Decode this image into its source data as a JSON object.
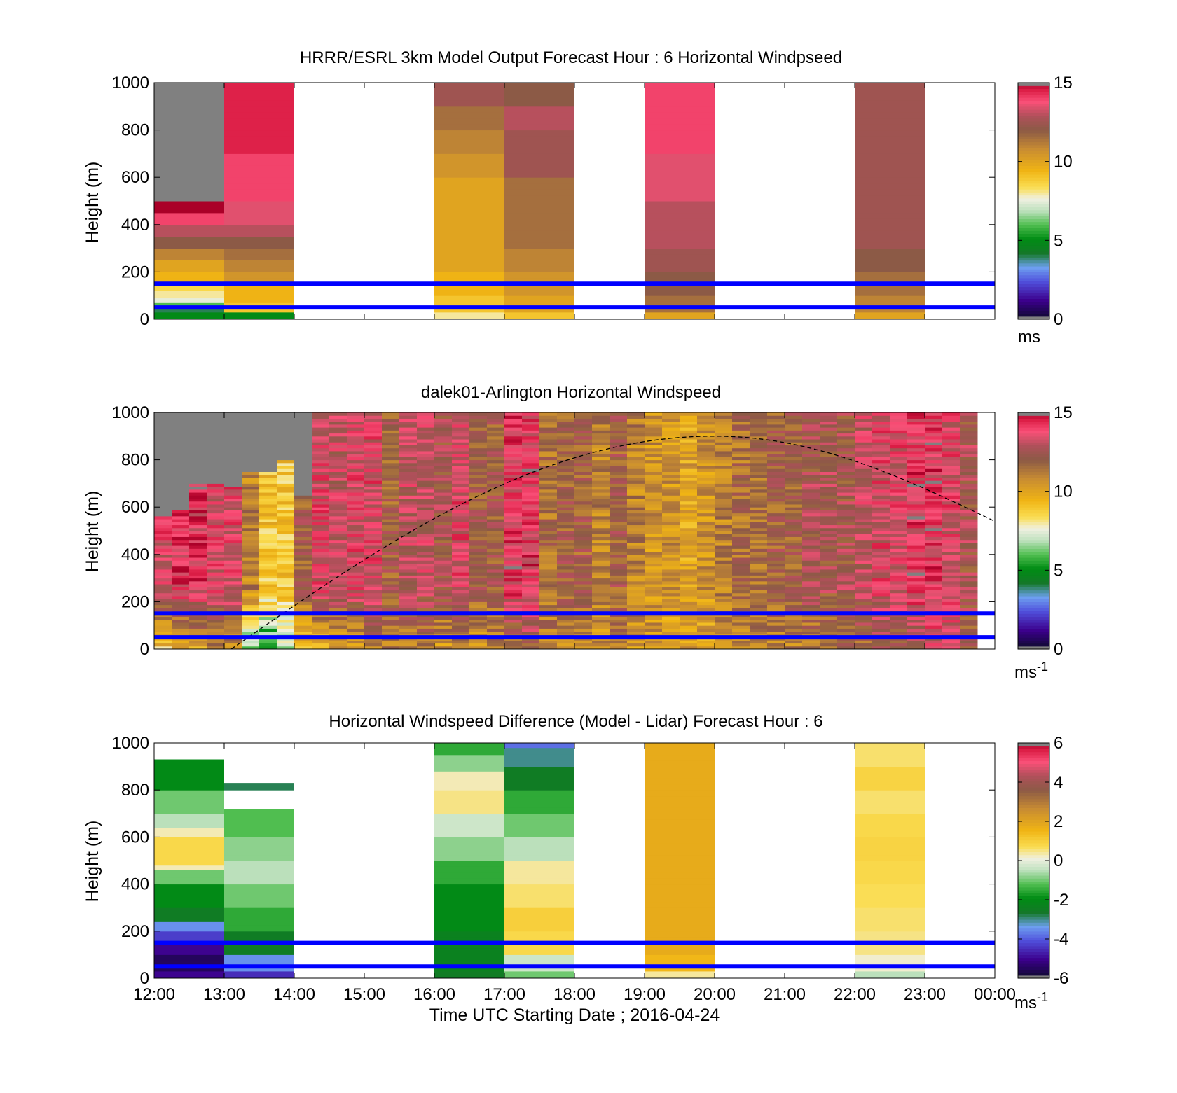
{
  "figure": {
    "xlabel": "Time UTC  Starting Date ; 2016-04-24",
    "x_ticks": [
      "12:00",
      "13:00",
      "14:00",
      "15:00",
      "16:00",
      "17:00",
      "18:00",
      "19:00",
      "20:00",
      "21:00",
      "22:00",
      "23:00",
      "00:00"
    ],
    "reference_lines_m": [
      50,
      150
    ],
    "reference_line_color": "#0000ff"
  },
  "chart_data": [
    {
      "type": "heatmap",
      "title": "HRRR/ESRL 3km Model Output   Forecast Hour : 6 Horizontal Windpseed",
      "ylabel": "Height (m)",
      "ylim": [
        0,
        1000
      ],
      "yticks": [
        0,
        200,
        400,
        600,
        800,
        1000
      ],
      "xlim_hours": [
        12,
        24
      ],
      "colorbar": {
        "range": [
          0,
          15
        ],
        "ticks": [
          0,
          5,
          10,
          15
        ],
        "unit": "ms",
        "unit_sup": ""
      },
      "columns": [
        {
          "start": 12,
          "end": 13,
          "cells": [
            [
              30,
              5
            ],
            [
              50,
              4
            ],
            [
              70,
              6
            ],
            [
              90,
              7.5
            ],
            [
              120,
              8
            ],
            [
              150,
              8.5
            ],
            [
              200,
              9.5
            ],
            [
              250,
              10
            ],
            [
              300,
              11
            ],
            [
              350,
              12
            ],
            [
              400,
              13
            ],
            [
              450,
              14
            ],
            [
              500,
              15
            ],
            [
              1000,
              16
            ]
          ]
        },
        {
          "start": 13,
          "end": 14,
          "cells": [
            [
              30,
              5
            ],
            [
              70,
              9
            ],
            [
              150,
              9.5
            ],
            [
              200,
              10.5
            ],
            [
              250,
              11
            ],
            [
              300,
              11.5
            ],
            [
              350,
              12
            ],
            [
              400,
              13
            ],
            [
              500,
              13.5
            ],
            [
              700,
              14
            ],
            [
              1000,
              14.5
            ]
          ]
        },
        {
          "start": 16,
          "end": 17,
          "cells": [
            [
              30,
              8
            ],
            [
              100,
              9
            ],
            [
              200,
              9.5
            ],
            [
              300,
              10
            ],
            [
              400,
              10
            ],
            [
              500,
              10
            ],
            [
              600,
              10
            ],
            [
              700,
              10.5
            ],
            [
              800,
              11
            ],
            [
              900,
              11.5
            ],
            [
              1000,
              12.5
            ]
          ]
        },
        {
          "start": 17,
          "end": 18,
          "cells": [
            [
              30,
              9
            ],
            [
              100,
              10
            ],
            [
              200,
              10.5
            ],
            [
              300,
              11
            ],
            [
              400,
              11.5
            ],
            [
              500,
              11.5
            ],
            [
              600,
              11.5
            ],
            [
              700,
              12.5
            ],
            [
              800,
              12.5
            ],
            [
              900,
              13
            ],
            [
              1000,
              12
            ]
          ]
        },
        {
          "start": 19,
          "end": 20,
          "cells": [
            [
              30,
              10
            ],
            [
              100,
              11.5
            ],
            [
              200,
              12
            ],
            [
              300,
              12.5
            ],
            [
              400,
              13
            ],
            [
              500,
              13
            ],
            [
              600,
              13.5
            ],
            [
              700,
              13.5
            ],
            [
              800,
              14
            ],
            [
              900,
              14
            ],
            [
              1000,
              14
            ]
          ]
        },
        {
          "start": 22,
          "end": 23,
          "cells": [
            [
              30,
              10
            ],
            [
              100,
              11
            ],
            [
              200,
              11.5
            ],
            [
              300,
              12
            ],
            [
              400,
              12.5
            ],
            [
              500,
              12.5
            ],
            [
              600,
              12.5
            ],
            [
              700,
              12.5
            ],
            [
              800,
              12.5
            ],
            [
              900,
              12.5
            ],
            [
              1000,
              12.5
            ]
          ]
        }
      ]
    },
    {
      "type": "heatmap",
      "title": "dalek01-Arlington  Horizontal Windspeed",
      "ylabel": "Height (m)",
      "ylim": [
        0,
        1000
      ],
      "yticks": [
        0,
        200,
        400,
        600,
        800,
        1000
      ],
      "xlim_hours": [
        12,
        24
      ],
      "colorbar": {
        "range": [
          0,
          15
        ],
        "ticks": [
          0,
          5,
          10,
          15
        ],
        "unit": "ms",
        "unit_sup": "-1"
      },
      "column_step_hours": 0.25,
      "column_top_m": [
        560,
        580,
        700,
        700,
        680,
        740,
        740,
        800,
        640,
        1000,
        1000,
        1000,
        1000,
        1000,
        1000,
        1000,
        1000,
        1000,
        1000,
        1000,
        1000,
        1000,
        1000,
        1000,
        1000,
        1000,
        1000,
        1000,
        1000,
        1000,
        1000,
        1000,
        1000,
        1000,
        1000,
        1000,
        1000,
        1000,
        1000,
        1000,
        1000,
        1000,
        1000,
        1000,
        1000,
        1000,
        1000,
        1000
      ],
      "column_mean_ms": [
        13.5,
        14,
        14,
        13.5,
        13.5,
        11,
        9,
        9,
        12,
        13.5,
        13,
        13.5,
        13.5,
        12,
        13,
        13,
        12.5,
        13.5,
        12,
        12,
        14,
        14,
        11.5,
        12,
        12,
        11,
        12,
        11,
        10.5,
        10.5,
        10,
        10.5,
        11,
        11.5,
        11.5,
        12,
        12,
        12.5,
        12.5,
        12.5,
        13,
        13.5,
        13.5,
        14,
        14,
        13.5,
        12.5,
        14
      ],
      "column_low_ms": [
        9,
        9.5,
        10,
        11,
        10.5,
        6,
        5,
        7,
        9,
        9,
        10,
        10,
        11,
        11,
        11,
        11,
        10.5,
        11,
        10.5,
        11,
        11,
        12,
        11,
        11,
        11,
        10.5,
        11,
        10.5,
        10.5,
        10,
        10,
        10,
        10.5,
        10.5,
        11,
        11,
        11,
        11,
        11,
        11.5,
        11.5,
        12,
        12,
        12.5,
        13,
        13,
        12,
        13
      ],
      "curve": {
        "style": "dashed",
        "start_hour": 13.1,
        "peak_hour": 20,
        "peak_m": 900,
        "end_hour": 24,
        "end_m": 540
      }
    },
    {
      "type": "heatmap",
      "title": "Horizontal Windspeed Difference (Model - Lidar) Forecast Hour : 6",
      "ylabel": "Height (m)",
      "ylim": [
        0,
        1000
      ],
      "yticks": [
        0,
        200,
        400,
        600,
        800,
        1000
      ],
      "xlim_hours": [
        12,
        24
      ],
      "colorbar": {
        "range": [
          -6,
          6
        ],
        "ticks": [
          -6,
          -4,
          -2,
          0,
          2,
          4,
          6
        ],
        "unit": "ms",
        "unit_sup": "-1"
      },
      "columns": [
        {
          "start": 12,
          "end": 13,
          "cells": [
            [
              30,
              -5
            ],
            [
              100,
              -5.5
            ],
            [
              150,
              -5
            ],
            [
              200,
              -4.3
            ],
            [
              240,
              -3.5
            ],
            [
              300,
              -2.5
            ],
            [
              400,
              -2
            ],
            [
              460,
              -1
            ],
            [
              480,
              0.3
            ],
            [
              600,
              0.8
            ],
            [
              640,
              0.3
            ],
            [
              700,
              -0.5
            ],
            [
              800,
              -1
            ],
            [
              930,
              -2
            ]
          ]
        },
        {
          "start": 13,
          "end": 14,
          "cells": [
            [
              30,
              -4.5
            ],
            [
              100,
              -3.5
            ],
            [
              200,
              -2.5
            ],
            [
              300,
              -1.5
            ],
            [
              400,
              -1
            ],
            [
              500,
              -0.5
            ],
            [
              600,
              -0.8
            ],
            [
              720,
              -1.2
            ],
            [
              800,
              null
            ],
            [
              830,
              -2.8
            ]
          ]
        },
        {
          "start": 16,
          "end": 17,
          "cells": [
            [
              30,
              -2.5
            ],
            [
              200,
              -2.3
            ],
            [
              300,
              -2
            ],
            [
              400,
              -2
            ],
            [
              500,
              -1.5
            ],
            [
              600,
              -0.8
            ],
            [
              700,
              -0.3
            ],
            [
              800,
              0.5
            ],
            [
              880,
              0.3
            ],
            [
              950,
              -0.8
            ],
            [
              1000,
              -1.5
            ]
          ]
        },
        {
          "start": 17,
          "end": 18,
          "cells": [
            [
              30,
              -1
            ],
            [
              100,
              -0.3
            ],
            [
              200,
              0.8
            ],
            [
              300,
              1
            ],
            [
              400,
              0.6
            ],
            [
              500,
              0.4
            ],
            [
              600,
              -0.5
            ],
            [
              700,
              -1
            ],
            [
              800,
              -1.5
            ],
            [
              900,
              -2.5
            ],
            [
              980,
              -3
            ],
            [
              1000,
              -3.8
            ]
          ]
        },
        {
          "start": 19,
          "end": 20,
          "cells": [
            [
              30,
              0.4
            ],
            [
              100,
              1.5
            ],
            [
              200,
              1.8
            ],
            [
              300,
              1.8
            ],
            [
              400,
              1.8
            ],
            [
              500,
              1.8
            ],
            [
              600,
              1.8
            ],
            [
              700,
              1.8
            ],
            [
              800,
              1.8
            ],
            [
              900,
              1.8
            ],
            [
              1000,
              1.8
            ]
          ]
        },
        {
          "start": 22,
          "end": 23,
          "cells": [
            [
              30,
              -0.5
            ],
            [
              100,
              0.2
            ],
            [
              200,
              0.5
            ],
            [
              300,
              0.6
            ],
            [
              400,
              0.7
            ],
            [
              500,
              0.8
            ],
            [
              600,
              0.9
            ],
            [
              700,
              0.8
            ],
            [
              800,
              0.6
            ],
            [
              900,
              0.9
            ],
            [
              1000,
              0.6
            ]
          ]
        }
      ]
    }
  ]
}
